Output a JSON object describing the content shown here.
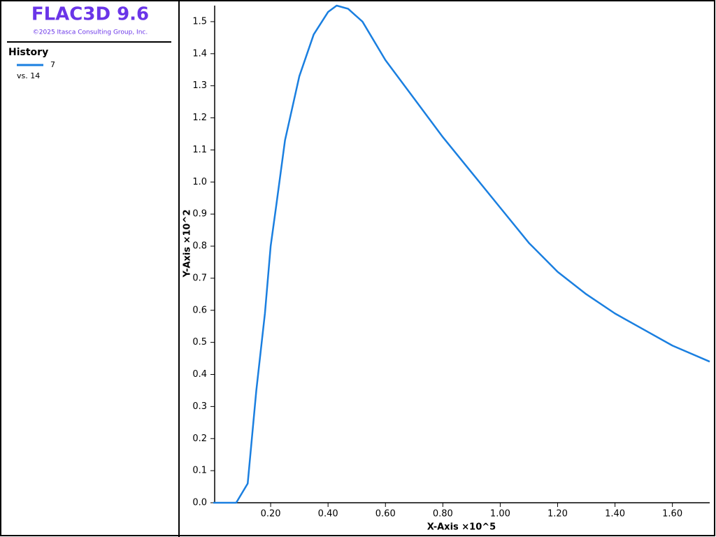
{
  "chart_data": {
    "type": "line",
    "app_title": "FLAC3D 9.6",
    "copyright": "©2025 Itasca Consulting Group, Inc.",
    "legend_title": "History",
    "legend_note": "vs. 14",
    "xlabel": "X-Axis ×10^5",
    "ylabel": "Y-Axis ×10^2",
    "x": [
      0,
      0.08,
      0.1,
      0.12,
      0.15,
      0.18,
      0.2,
      0.22,
      0.25,
      0.3,
      0.35,
      0.4,
      0.43,
      0.47,
      0.52,
      0.6,
      0.7,
      0.8,
      0.9,
      1.0,
      1.1,
      1.2,
      1.3,
      1.4,
      1.5,
      1.6,
      1.73
    ],
    "series": [
      {
        "name": "7",
        "color": "#1a7fe0",
        "values": [
          0,
          0,
          0.03,
          0.06,
          0.35,
          0.59,
          0.8,
          0.93,
          1.13,
          1.33,
          1.46,
          1.53,
          1.55,
          1.54,
          1.5,
          1.38,
          1.26,
          1.14,
          1.03,
          0.92,
          0.81,
          0.72,
          0.65,
          0.59,
          0.54,
          0.49,
          0.44
        ]
      }
    ],
    "xlim": [
      0,
      1.73
    ],
    "ylim": [
      0,
      1.55
    ],
    "xticks": [
      {
        "value": 0.2,
        "label": "0.20"
      },
      {
        "value": 0.4,
        "label": "0.40"
      },
      {
        "value": 0.6,
        "label": "0.60"
      },
      {
        "value": 0.8,
        "label": "0.80"
      },
      {
        "value": 1.0,
        "label": "1.00"
      },
      {
        "value": 1.2,
        "label": "1.20"
      },
      {
        "value": 1.4,
        "label": "1.40"
      },
      {
        "value": 1.6,
        "label": "1.60"
      }
    ],
    "yticks": [
      {
        "value": 0,
        "label": "0.0"
      },
      0.1,
      0.2,
      0.3,
      0.4,
      0.5,
      0.6,
      0.7,
      0.8,
      0.9,
      {
        "value": 1.0,
        "label": "1.0"
      },
      1.1,
      1.2,
      1.3,
      1.4,
      1.5
    ]
  }
}
